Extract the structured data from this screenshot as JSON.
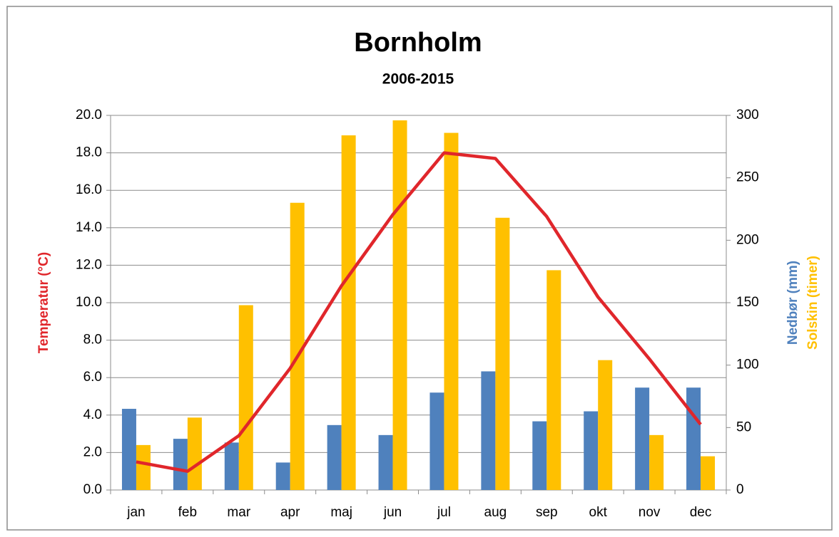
{
  "chart_data": {
    "type": "bar_line",
    "title": "Bornholm",
    "subtitle": "2006-2015",
    "categories": [
      "jan",
      "feb",
      "mar",
      "apr",
      "maj",
      "jun",
      "jul",
      "aug",
      "sep",
      "okt",
      "nov",
      "dec"
    ],
    "series": [
      {
        "name": "Temperatur (°C)",
        "color": "#e0262b",
        "type": "line",
        "values": [
          1.5,
          1.0,
          2.9,
          6.5,
          10.9,
          14.7,
          18.0,
          17.7,
          14.6,
          10.3,
          7.0,
          3.5
        ]
      },
      {
        "name": "Nedbør (mm)",
        "color": "#4f81bd",
        "type": "bar",
        "axis": "y2",
        "values": [
          65,
          41,
          38,
          22,
          52,
          44,
          78,
          95,
          55,
          63,
          82,
          82
        ]
      },
      {
        "name": "Solskin (timer)",
        "color": "#ffc000",
        "type": "bar",
        "axis": "y2",
        "values": [
          36,
          58,
          148,
          230,
          284,
          296,
          286,
          218,
          176,
          104,
          44,
          27
        ]
      }
    ],
    "ylim": [
      0,
      20
    ],
    "yticks": [
      {
        "value": 0,
        "label": "0.0"
      },
      {
        "value": 2,
        "label": "2.0"
      },
      {
        "value": 4,
        "label": "4.0"
      },
      {
        "value": 6,
        "label": "6.0"
      },
      {
        "value": 8,
        "label": "8.0"
      },
      {
        "value": 10,
        "label": "10.0"
      },
      {
        "value": 12,
        "label": "12.0"
      },
      {
        "value": 14,
        "label": "14.0"
      },
      {
        "value": 16,
        "label": "16.0"
      },
      {
        "value": 18,
        "label": "18.0"
      },
      {
        "value": 20,
        "label": "20.0"
      }
    ],
    "y2lim": [
      0,
      300
    ],
    "y2ticks": [
      0,
      50,
      100,
      150,
      200,
      250,
      300
    ],
    "grid": true
  }
}
